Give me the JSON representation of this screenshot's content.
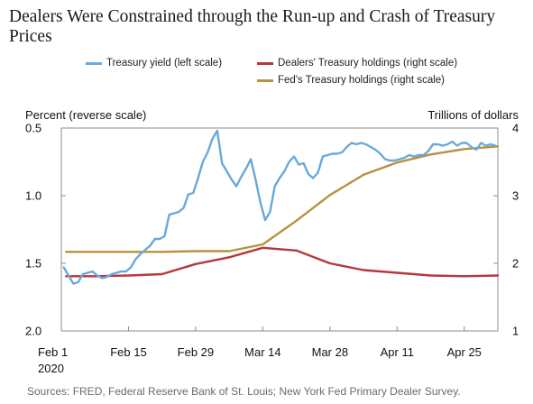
{
  "title": "Dealers Were Constrained through the Run-up and Crash of Treasury Prices",
  "source": "Sources: FRED, Federal Reserve Bank of St. Louis; New York Fed Primary Dealer Survey.",
  "chart_data": {
    "type": "line",
    "title": "Dealers Were Constrained through the Run-up and Crash of Treasury Prices",
    "left_axis_label": "Percent (reverse scale)",
    "right_axis_label": "Trillions of dollars",
    "left_axis": {
      "ticks": [
        "0.5",
        "1.0",
        "1.5",
        "2.0"
      ],
      "tick_values": [
        0.5,
        1.0,
        1.5,
        2.0
      ],
      "ylim": [
        2.0,
        0.5
      ],
      "reversed": true
    },
    "right_axis": {
      "ticks": [
        "4",
        "3",
        "2",
        "1"
      ],
      "tick_values": [
        4,
        3,
        2,
        1
      ],
      "ylim": [
        1,
        4
      ]
    },
    "x_axis": {
      "ticks": [
        {
          "label": "Feb 1",
          "sublabel": "2020",
          "day": 0
        },
        {
          "label": "Feb 15",
          "day": 14
        },
        {
          "label": "Feb 29",
          "day": 28
        },
        {
          "label": "Mar 14",
          "day": 42
        },
        {
          "label": "Mar 28",
          "day": 56
        },
        {
          "label": "Apr 11",
          "day": 70
        },
        {
          "label": "Apr 25",
          "day": 84
        }
      ],
      "xlim": [
        0,
        91
      ]
    },
    "grid": false,
    "legend_placement": "top",
    "series": [
      {
        "name": "Treasury yield (left scale)",
        "axis": "left",
        "color": "#6aa9d8",
        "x": [
          0.5,
          1.5,
          2.5,
          3.5,
          4.5,
          5.5,
          6.5,
          7.5,
          8.5,
          9.5,
          10.5,
          11.5,
          12.5,
          13.5,
          14.5,
          15.5,
          16.5,
          17.5,
          18.5,
          19.5,
          20.5,
          21.5,
          22.5,
          23.5,
          24.5,
          25.5,
          26.5,
          27.5,
          28.5,
          29.5,
          30.5,
          31.5,
          32.5,
          33.5,
          34.5,
          35.5,
          36.5,
          37.5,
          38.5,
          39.5,
          40.5,
          41.5,
          42.5,
          43.5,
          44.5,
          45.5,
          46.5,
          47.5,
          48.5,
          49.5,
          50.5,
          51.5,
          52.5,
          53.5,
          54.5,
          55.5,
          56.5,
          57.5,
          58.5,
          59.5,
          60.5,
          61.5,
          62.5,
          63.5,
          64.5,
          65.5,
          66.5,
          67.5,
          68.5,
          69.5,
          70.5,
          71.5,
          72.5,
          73.5,
          74.5,
          75.5,
          76.5,
          77.5,
          78.5,
          79.5,
          80.5,
          81.5,
          82.5,
          83.5,
          84.5,
          85.5,
          86.5,
          87.5,
          88.5,
          89.5,
          90.5
        ],
        "values": [
          1.53,
          1.59,
          1.65,
          1.64,
          1.58,
          1.57,
          1.56,
          1.59,
          1.61,
          1.6,
          1.58,
          1.57,
          1.56,
          1.56,
          1.53,
          1.47,
          1.43,
          1.4,
          1.37,
          1.32,
          1.32,
          1.3,
          1.14,
          1.13,
          1.12,
          1.09,
          0.99,
          0.98,
          0.87,
          0.75,
          0.68,
          0.58,
          0.52,
          0.76,
          0.82,
          0.88,
          0.93,
          0.86,
          0.8,
          0.73,
          0.88,
          1.05,
          1.18,
          1.12,
          0.93,
          0.87,
          0.82,
          0.75,
          0.71,
          0.77,
          0.76,
          0.84,
          0.87,
          0.83,
          0.71,
          0.7,
          0.69,
          0.69,
          0.68,
          0.64,
          0.61,
          0.62,
          0.61,
          0.62,
          0.64,
          0.66,
          0.69,
          0.73,
          0.74,
          0.74,
          0.73,
          0.72,
          0.7,
          0.71,
          0.7,
          0.7,
          0.67,
          0.62,
          0.62,
          0.63,
          0.62,
          0.6,
          0.63,
          0.61,
          0.61,
          0.64,
          0.66,
          0.61,
          0.63,
          0.62,
          0.63
        ]
      },
      {
        "name": "Dealers' Treasury holdings (right scale)",
        "axis": "right",
        "color": "#b5383d",
        "x": [
          1,
          7,
          14,
          21,
          28,
          35,
          42,
          49,
          56,
          63,
          70,
          77,
          84,
          91
        ],
        "values": [
          1.81,
          1.81,
          1.82,
          1.84,
          1.99,
          2.09,
          2.23,
          2.19,
          2.0,
          1.9,
          1.86,
          1.82,
          1.81,
          1.82
        ]
      },
      {
        "name": "Fed's Treasury holdings (right scale)",
        "axis": "right",
        "color": "#b8913f",
        "x": [
          1,
          7,
          14,
          21,
          28,
          35,
          42,
          49,
          56,
          63,
          70,
          77,
          84,
          91
        ],
        "values": [
          2.17,
          2.17,
          2.17,
          2.17,
          2.18,
          2.18,
          2.28,
          2.63,
          3.01,
          3.31,
          3.49,
          3.61,
          3.69,
          3.73
        ]
      }
    ]
  }
}
